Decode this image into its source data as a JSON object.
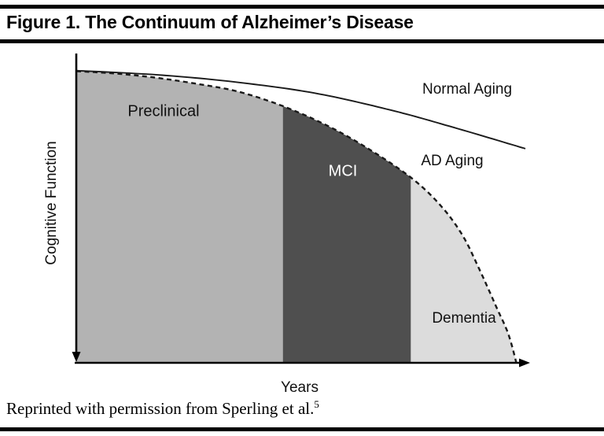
{
  "figure": {
    "title": "Figure 1. The Continuum of Alzheimer’s Disease",
    "caption_text": "Reprinted with permission from Sperling et al.",
    "caption_superscript": "5"
  },
  "chart_data": {
    "type": "area",
    "title": "The Continuum of Alzheimer’s Disease",
    "xlabel": "Years",
    "ylabel": "Cognitive Function",
    "grid": false,
    "legend_position": "inline-annotations",
    "axes": {
      "x": {
        "label": "Years",
        "range_normalized": [
          0,
          1
        ],
        "tick_labels": [],
        "arrow": "right"
      },
      "y": {
        "label": "Cognitive Function",
        "range_normalized": [
          0,
          1
        ],
        "tick_labels": [],
        "arrow": "down"
      }
    },
    "curves": [
      {
        "name": "Normal Aging",
        "line_style": "solid",
        "color": "#1a1a1a",
        "x": [
          0,
          0.18,
          0.35,
          0.53,
          0.7,
          0.84,
          1.0
        ],
        "y": [
          0.962,
          0.948,
          0.925,
          0.888,
          0.832,
          0.775,
          0.705
        ]
      },
      {
        "name": "AD Aging",
        "line_style": "dashed",
        "color": "#1a1a1a",
        "x": [
          0,
          0.09,
          0.18,
          0.27,
          0.36,
          0.46,
          0.56,
          0.65,
          0.745,
          0.81,
          0.86,
          0.9,
          0.935,
          0.962,
          0.98
        ],
        "y": [
          0.96,
          0.952,
          0.938,
          0.918,
          0.893,
          0.845,
          0.78,
          0.705,
          0.61,
          0.52,
          0.42,
          0.3,
          0.185,
          0.095,
          0.0
        ]
      }
    ],
    "regions": [
      {
        "label": "Preclinical",
        "x_start": 0.0,
        "x_end": 0.46,
        "color": "#b3b3b3",
        "label_color": "#111111"
      },
      {
        "label": "MCI",
        "x_start": 0.46,
        "x_end": 0.745,
        "color": "#4f4f4f",
        "label_color": "#ffffff"
      },
      {
        "label": "Dementia",
        "x_start": 0.745,
        "x_end": 0.98,
        "color": "#dcdcdc",
        "label_color": "#111111"
      }
    ]
  }
}
